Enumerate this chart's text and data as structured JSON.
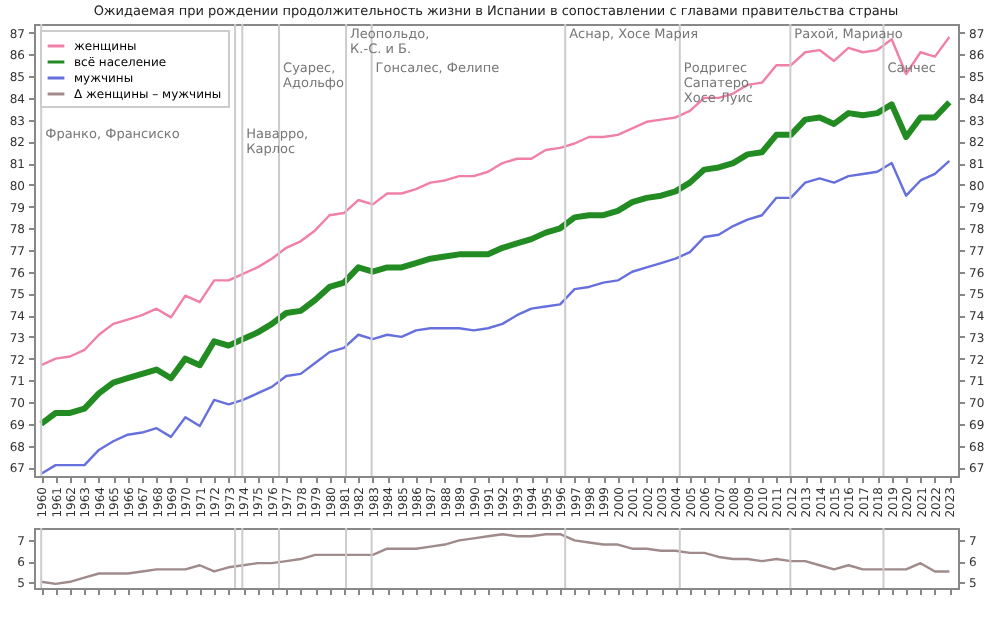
{
  "chart_data": [
    {
      "type": "line",
      "title": "Ожидаемая при рождении продолжительность жизни в Испании в сопоставлении с главами правительства страны",
      "x": [
        1960,
        1961,
        1962,
        1963,
        1964,
        1965,
        1966,
        1967,
        1968,
        1969,
        1970,
        1971,
        1972,
        1973,
        1974,
        1975,
        1976,
        1977,
        1978,
        1979,
        1980,
        1981,
        1982,
        1983,
        1984,
        1985,
        1986,
        1987,
        1988,
        1989,
        1990,
        1991,
        1992,
        1993,
        1994,
        1995,
        1996,
        1997,
        1998,
        1999,
        2000,
        2001,
        2002,
        2003,
        2004,
        2005,
        2006,
        2007,
        2008,
        2009,
        2010,
        2011,
        2012,
        2013,
        2014,
        2015,
        2016,
        2017,
        2018,
        2019,
        2020,
        2021,
        2022,
        2023
      ],
      "series": [
        {
          "name": "женщины",
          "color": "#f080a8",
          "values": [
            71.7,
            72.0,
            72.1,
            72.4,
            73.1,
            73.6,
            73.8,
            74.0,
            74.3,
            73.9,
            74.9,
            74.6,
            75.6,
            75.6,
            75.9,
            76.2,
            76.6,
            77.1,
            77.4,
            77.9,
            78.6,
            78.7,
            79.3,
            79.1,
            79.6,
            79.6,
            79.8,
            80.1,
            80.2,
            80.4,
            80.4,
            80.6,
            81.0,
            81.2,
            81.2,
            81.6,
            81.7,
            81.9,
            82.2,
            82.2,
            82.3,
            82.6,
            82.9,
            83.0,
            83.1,
            83.4,
            84.0,
            84.0,
            84.2,
            84.6,
            84.7,
            85.5,
            85.5,
            86.1,
            86.2,
            85.7,
            86.3,
            86.1,
            86.2,
            86.7,
            85.1,
            86.1,
            85.9,
            86.8
          ]
        },
        {
          "name": "всё население",
          "color": "#228b22",
          "values": [
            69.0,
            69.5,
            69.5,
            69.7,
            70.4,
            70.9,
            71.1,
            71.3,
            71.5,
            71.1,
            72.0,
            71.7,
            72.8,
            72.6,
            72.9,
            73.2,
            73.6,
            74.1,
            74.2,
            74.7,
            75.3,
            75.5,
            76.2,
            76.0,
            76.2,
            76.2,
            76.4,
            76.6,
            76.7,
            76.8,
            76.8,
            76.8,
            77.1,
            77.3,
            77.5,
            77.8,
            78.0,
            78.5,
            78.6,
            78.6,
            78.8,
            79.2,
            79.4,
            79.5,
            79.7,
            80.1,
            80.7,
            80.8,
            81.0,
            81.4,
            81.5,
            82.3,
            82.3,
            83.0,
            83.1,
            82.8,
            83.3,
            83.2,
            83.3,
            83.7,
            82.2,
            83.1,
            83.1,
            83.8
          ]
        },
        {
          "name": "мужчины",
          "color": "#6670dd",
          "values": [
            66.7,
            67.1,
            67.1,
            67.1,
            67.8,
            68.2,
            68.5,
            68.6,
            68.8,
            68.4,
            69.3,
            68.9,
            70.1,
            69.9,
            70.1,
            70.4,
            70.7,
            71.2,
            71.3,
            71.8,
            72.3,
            72.5,
            73.1,
            72.9,
            73.1,
            73.0,
            73.3,
            73.4,
            73.4,
            73.4,
            73.3,
            73.4,
            73.6,
            74.0,
            74.3,
            74.4,
            74.5,
            75.2,
            75.3,
            75.5,
            75.6,
            76.0,
            76.2,
            76.4,
            76.6,
            76.9,
            77.6,
            77.7,
            78.1,
            78.4,
            78.6,
            79.4,
            79.4,
            80.1,
            80.3,
            80.1,
            80.4,
            80.5,
            80.6,
            81.0,
            79.5,
            80.2,
            80.5,
            81.1
          ]
        }
      ],
      "xticks": [
        1960,
        1961,
        1962,
        1963,
        1964,
        1965,
        1966,
        1967,
        1968,
        1969,
        1970,
        1971,
        1972,
        1973,
        1974,
        1975,
        1976,
        1977,
        1978,
        1979,
        1980,
        1981,
        1982,
        1983,
        1984,
        1985,
        1986,
        1987,
        1988,
        1989,
        1990,
        1991,
        1992,
        1993,
        1994,
        1995,
        1996,
        1997,
        1998,
        1999,
        2000,
        2001,
        2002,
        2003,
        2004,
        2005,
        2006,
        2007,
        2008,
        2009,
        2010,
        2011,
        2012,
        2013,
        2014,
        2015,
        2016,
        2017,
        2018,
        2019,
        2020,
        2021,
        2022,
        2023
      ],
      "ylim": [
        66.6,
        87.4
      ],
      "yticks": [
        67,
        68,
        69,
        70,
        71,
        72,
        73,
        74,
        75,
        76,
        77,
        78,
        79,
        80,
        81,
        82,
        83,
        84,
        85,
        86,
        87
      ],
      "y2lim": [
        66.6,
        87.4
      ],
      "y2ticks": [
        67,
        68,
        69,
        70,
        71,
        72,
        73,
        74,
        75,
        76,
        77,
        78,
        79,
        80,
        81,
        82,
        83,
        84,
        85,
        86,
        87
      ],
      "legend": "top left",
      "xlim": [
        1959.5,
        2023.6
      ],
      "ref_lines": [
        {
          "axis": "x",
          "value": 1960,
          "label": "Франко, Франсиско"
        },
        {
          "axis": "x",
          "value": 1973.45,
          "label": null
        },
        {
          "axis": "x",
          "value": 1973.95,
          "label": "Наварро,\nКарлос"
        },
        {
          "axis": "x",
          "value": 1976.5,
          "label": "Суарес,\nАдольфо"
        },
        {
          "axis": "x",
          "value": 1981.15,
          "label": "Леопольдо,\nК.-С. и Б."
        },
        {
          "axis": "x",
          "value": 1982.92,
          "label": "Гонсалес, Фелипе"
        },
        {
          "axis": "x",
          "value": 1996.35,
          "label": "Аснар, Хосе Мария"
        },
        {
          "axis": "x",
          "value": 2004.3,
          "label": "Родригес\nСапатеро,\nХосе Луис"
        },
        {
          "axis": "x",
          "value": 2011.97,
          "label": "Рахой, Мариано"
        },
        {
          "axis": "x",
          "value": 2018.43,
          "label": "Санчес"
        }
      ]
    },
    {
      "type": "line",
      "x": [
        1960,
        1961,
        1962,
        1963,
        1964,
        1965,
        1966,
        1967,
        1968,
        1969,
        1970,
        1971,
        1972,
        1973,
        1974,
        1975,
        1976,
        1977,
        1978,
        1979,
        1980,
        1981,
        1982,
        1983,
        1984,
        1985,
        1986,
        1987,
        1988,
        1989,
        1990,
        1991,
        1992,
        1993,
        1994,
        1995,
        1996,
        1997,
        1998,
        1999,
        2000,
        2001,
        2002,
        2003,
        2004,
        2005,
        2006,
        2007,
        2008,
        2009,
        2010,
        2011,
        2012,
        2013,
        2014,
        2015,
        2016,
        2017,
        2018,
        2019,
        2020,
        2021,
        2022,
        2023
      ],
      "series": [
        {
          "name": "Δ женщины – мужчины",
          "color": "#a08a8a",
          "values": [
            5.0,
            4.9,
            5.0,
            5.2,
            5.4,
            5.4,
            5.4,
            5.5,
            5.6,
            5.6,
            5.6,
            5.8,
            5.5,
            5.7,
            5.8,
            5.9,
            5.9,
            6.0,
            6.1,
            6.3,
            6.3,
            6.3,
            6.3,
            6.3,
            6.6,
            6.6,
            6.6,
            6.7,
            6.8,
            7.0,
            7.1,
            7.2,
            7.3,
            7.2,
            7.2,
            7.3,
            7.3,
            7.0,
            6.9,
            6.8,
            6.8,
            6.6,
            6.6,
            6.5,
            6.5,
            6.4,
            6.4,
            6.2,
            6.1,
            6.1,
            6.0,
            6.1,
            6.0,
            6.0,
            5.8,
            5.6,
            5.8,
            5.6,
            5.6,
            5.6,
            5.6,
            5.9,
            5.5,
            5.5
          ]
        }
      ],
      "xlim": [
        1959.5,
        2023.6
      ],
      "xticks": [
        1960,
        1961,
        1962,
        1963,
        1964,
        1965,
        1966,
        1967,
        1968,
        1969,
        1970,
        1971,
        1972,
        1973,
        1974,
        1975,
        1976,
        1977,
        1978,
        1979,
        1980,
        1981,
        1982,
        1983,
        1984,
        1985,
        1986,
        1987,
        1988,
        1989,
        1990,
        1991,
        1992,
        1993,
        1994,
        1995,
        1996,
        1997,
        1998,
        1999,
        2000,
        2001,
        2002,
        2003,
        2004,
        2005,
        2006,
        2007,
        2008,
        2009,
        2010,
        2011,
        2012,
        2013,
        2014,
        2015,
        2016,
        2017,
        2018,
        2019,
        2020,
        2021,
        2022,
        2023
      ],
      "ylim": [
        4.7,
        7.6
      ],
      "yticks": [
        5,
        6,
        7
      ],
      "y2lim": [
        4.7,
        7.6
      ],
      "y2ticks": [
        5,
        6,
        7
      ],
      "tick_labels": "y",
      "ref_lines": [
        {
          "axis": "x",
          "value": 1960
        },
        {
          "axis": "x",
          "value": 1973.45
        },
        {
          "axis": "x",
          "value": 1973.95
        },
        {
          "axis": "x",
          "value": 1976.5
        },
        {
          "axis": "x",
          "value": 1981.15
        },
        {
          "axis": "x",
          "value": 1982.92
        },
        {
          "axis": "x",
          "value": 1996.35
        },
        {
          "axis": "x",
          "value": 2004.3
        },
        {
          "axis": "x",
          "value": 2011.97
        },
        {
          "axis": "x",
          "value": 2018.43
        }
      ]
    }
  ]
}
